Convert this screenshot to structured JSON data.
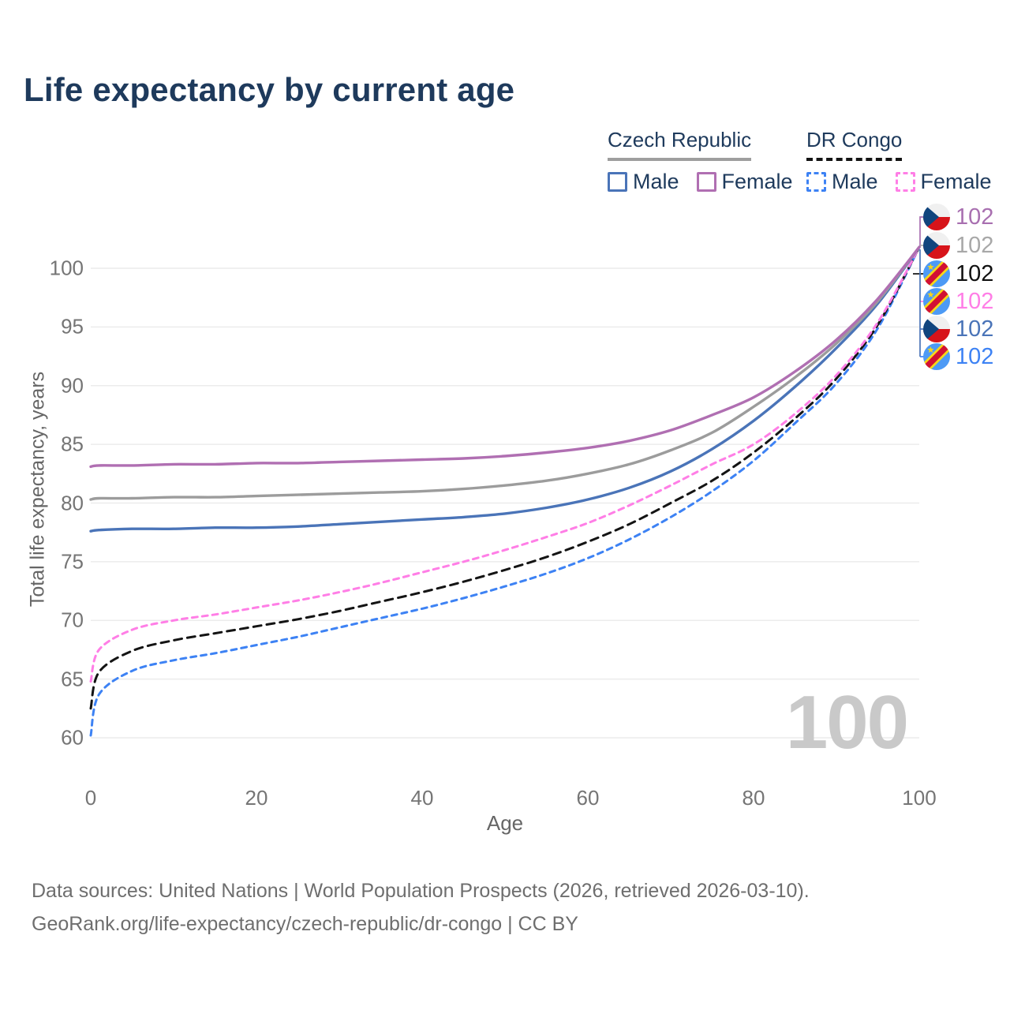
{
  "page": {
    "title": "Life expectancy by current age"
  },
  "legend": {
    "groups": [
      {
        "title": "Czech Republic",
        "line_style": "solid",
        "underline_color": "#9e9e9e",
        "items": [
          {
            "label": "Male",
            "color": "#4a74b8",
            "dashed": false
          },
          {
            "label": "Female",
            "color": "#b06fb2",
            "dashed": false
          }
        ]
      },
      {
        "title": "DR Congo",
        "line_style": "dashed",
        "underline_color": "#141414",
        "items": [
          {
            "label": "Male",
            "color": "#3d82f4",
            "dashed": true
          },
          {
            "label": "Female",
            "color": "#ff7ee6",
            "dashed": true
          }
        ]
      }
    ]
  },
  "axes": {
    "x_title": "Age",
    "y_title": "Total life expectancy, years"
  },
  "chart_data": {
    "type": "line",
    "title": "Life expectancy by current age",
    "xlabel": "Age",
    "ylabel": "Total life expectancy, years",
    "xlim": [
      0,
      100
    ],
    "ylim": [
      58.5,
      103
    ],
    "x_ticks": [
      0,
      20,
      40,
      60,
      80,
      100
    ],
    "y_ticks": [
      60,
      65,
      70,
      75,
      80,
      85,
      90,
      95,
      100
    ],
    "grid": "horizontal",
    "legend_position": "top-right",
    "x": [
      0,
      1,
      5,
      10,
      15,
      20,
      25,
      30,
      35,
      40,
      45,
      50,
      55,
      60,
      65,
      70,
      75,
      80,
      85,
      90,
      95,
      100
    ],
    "series": [
      {
        "name": "DR Congo Male",
        "country": "DR Congo",
        "sex": "Male",
        "color": "#3d82f4",
        "dashed": true,
        "end_value": 102,
        "values": [
          60.2,
          63.7,
          65.7,
          66.6,
          67.2,
          67.9,
          68.6,
          69.4,
          70.2,
          71.0,
          71.9,
          72.9,
          74.0,
          75.3,
          76.9,
          78.8,
          81.0,
          83.6,
          86.8,
          90.2,
          94.9,
          101.8
        ]
      },
      {
        "name": "DR Congo Both sexes",
        "country": "DR Congo",
        "sex": "Both",
        "color": "#141414",
        "dashed": true,
        "end_value": 102,
        "values": [
          62.5,
          65.6,
          67.4,
          68.3,
          68.9,
          69.5,
          70.1,
          70.8,
          71.6,
          72.4,
          73.3,
          74.3,
          75.4,
          76.7,
          78.2,
          80.0,
          81.9,
          84.3,
          87.2,
          90.6,
          95.2,
          101.8
        ]
      },
      {
        "name": "DR Congo Female",
        "country": "DR Congo",
        "sex": "Female",
        "color": "#ff7ee6",
        "dashed": true,
        "end_value": 102,
        "values": [
          64.8,
          67.5,
          69.2,
          70.0,
          70.5,
          71.1,
          71.7,
          72.4,
          73.2,
          74.1,
          75.0,
          76.0,
          77.1,
          78.3,
          79.8,
          81.5,
          83.3,
          85.0,
          87.6,
          90.9,
          95.4,
          101.8
        ]
      },
      {
        "name": "Czech Republic Male",
        "country": "Czech Republic",
        "sex": "Male",
        "color": "#4a74b8",
        "dashed": false,
        "end_value": 102,
        "values": [
          77.6,
          77.7,
          77.8,
          77.8,
          77.9,
          77.9,
          78.0,
          78.2,
          78.4,
          78.6,
          78.8,
          79.1,
          79.6,
          80.3,
          81.3,
          82.7,
          84.6,
          87.0,
          89.9,
          93.2,
          97.0,
          101.8
        ]
      },
      {
        "name": "Czech Republic Both sexes",
        "country": "Czech Republic",
        "sex": "Both",
        "color": "#9c9c9c",
        "dashed": false,
        "end_value": 102,
        "values": [
          80.3,
          80.4,
          80.4,
          80.5,
          80.5,
          80.6,
          80.7,
          80.8,
          80.9,
          81.0,
          81.2,
          81.5,
          81.9,
          82.5,
          83.3,
          84.5,
          86.0,
          88.2,
          90.7,
          93.6,
          97.2,
          101.8
        ]
      },
      {
        "name": "Czech Republic Female",
        "country": "Czech Republic",
        "sex": "Female",
        "color": "#b06fb2",
        "dashed": false,
        "end_value": 102,
        "values": [
          83.1,
          83.2,
          83.2,
          83.3,
          83.3,
          83.4,
          83.4,
          83.5,
          83.6,
          83.7,
          83.8,
          84.0,
          84.3,
          84.7,
          85.3,
          86.2,
          87.5,
          89.0,
          91.2,
          93.9,
          97.4,
          101.8
        ]
      }
    ],
    "end_labels": [
      {
        "flag": "czech-republic",
        "value": "102",
        "color": "#a86fb0"
      },
      {
        "flag": "czech-republic",
        "value": "102",
        "color": "#a8a8a8"
      },
      {
        "flag": "dr-congo",
        "value": "102",
        "color": "#111111"
      },
      {
        "flag": "dr-congo",
        "value": "102",
        "color": "#ff7ee6"
      },
      {
        "flag": "czech-republic",
        "value": "102",
        "color": "#4a74b8"
      },
      {
        "flag": "dr-congo",
        "value": "102",
        "color": "#3d82f4"
      }
    ],
    "watermark": "100"
  },
  "footer": {
    "line1": "Data sources: United Nations | World Population Prospects (2026, retrieved 2026-03-10).",
    "line2": "GeoRank.org/life-expectancy/czech-republic/dr-congo | CC BY"
  }
}
